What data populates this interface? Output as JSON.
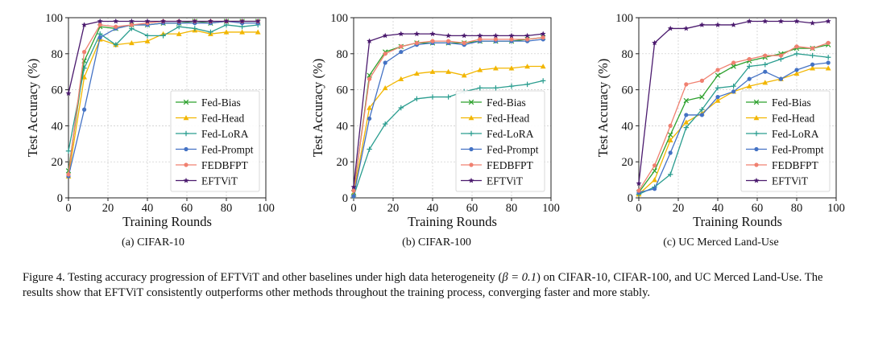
{
  "chart_data": [
    {
      "type": "line",
      "xlabel": "Training Rounds",
      "ylabel": "Test Accuracy (%)",
      "xlim": [
        0,
        100
      ],
      "ylim": [
        0,
        100
      ],
      "xticks": [
        0,
        20,
        40,
        60,
        80,
        100
      ],
      "yticks": [
        0,
        20,
        40,
        60,
        80,
        100
      ],
      "grid": true,
      "legend_position": "lower-right",
      "series": [
        {
          "name": "Fed-Bias",
          "color": "#2ca02c",
          "marker": "x",
          "x": [
            0,
            8,
            16,
            24,
            32,
            40,
            48,
            56,
            64,
            72,
            80,
            88,
            96
          ],
          "y": [
            15,
            76,
            95,
            94,
            96,
            96,
            97,
            97,
            98,
            97,
            98,
            98,
            98
          ]
        },
        {
          "name": "Fed-Head",
          "color": "#f2b600",
          "marker": "triangle",
          "x": [
            0,
            8,
            16,
            24,
            32,
            40,
            48,
            56,
            64,
            72,
            80,
            88,
            96
          ],
          "y": [
            12,
            67,
            88,
            85,
            86,
            87,
            91,
            91,
            93,
            91,
            92,
            92,
            92
          ]
        },
        {
          "name": "Fed-LoRA",
          "color": "#2a9d8f",
          "marker": "plus",
          "x": [
            0,
            8,
            16,
            24,
            32,
            40,
            48,
            56,
            64,
            72,
            80,
            88,
            96
          ],
          "y": [
            26,
            72,
            91,
            85,
            94,
            90,
            90,
            95,
            94,
            92,
            96,
            95,
            96
          ]
        },
        {
          "name": "Fed-Prompt",
          "color": "#4472c4",
          "marker": "circle",
          "x": [
            0,
            8,
            16,
            24,
            32,
            40,
            48,
            56,
            64,
            72,
            80,
            88,
            96
          ],
          "y": [
            12,
            49,
            89,
            94,
            96,
            96,
            97,
            97,
            97,
            97,
            98,
            97,
            97
          ]
        },
        {
          "name": "FEDBFPT",
          "color": "#f08070",
          "marker": "circle",
          "x": [
            0,
            8,
            16,
            24,
            32,
            40,
            48,
            56,
            64,
            72,
            80,
            88,
            96
          ],
          "y": [
            13,
            81,
            96,
            95,
            96,
            97,
            98,
            98,
            98,
            98,
            98,
            98,
            98
          ]
        },
        {
          "name": "EFTViT",
          "color": "#4b1a6e",
          "marker": "star",
          "x": [
            0,
            8,
            16,
            24,
            32,
            40,
            48,
            56,
            64,
            72,
            80,
            88,
            96
          ],
          "y": [
            58,
            96,
            98,
            98,
            98,
            98,
            98,
            98,
            98,
            98,
            98,
            98,
            98
          ]
        }
      ]
    },
    {
      "type": "line",
      "xlabel": "Training Rounds",
      "ylabel": "Test Accuracy (%)",
      "xlim": [
        0,
        100
      ],
      "ylim": [
        0,
        100
      ],
      "xticks": [
        0,
        20,
        40,
        60,
        80,
        100
      ],
      "yticks": [
        0,
        20,
        40,
        60,
        80,
        100
      ],
      "grid": true,
      "legend_position": "lower-right",
      "series": [
        {
          "name": "Fed-Bias",
          "color": "#2ca02c",
          "marker": "x",
          "x": [
            0,
            8,
            16,
            24,
            32,
            40,
            48,
            56,
            64,
            72,
            80,
            88,
            96
          ],
          "y": [
            3,
            68,
            81,
            84,
            86,
            86,
            86,
            86,
            87,
            87,
            87,
            88,
            89
          ]
        },
        {
          "name": "Fed-Head",
          "color": "#f2b600",
          "marker": "triangle",
          "x": [
            0,
            8,
            16,
            24,
            32,
            40,
            48,
            56,
            64,
            72,
            80,
            88,
            96
          ],
          "y": [
            2,
            50,
            61,
            66,
            69,
            70,
            70,
            68,
            71,
            72,
            72,
            73,
            73
          ]
        },
        {
          "name": "Fed-LoRA",
          "color": "#2a9d8f",
          "marker": "plus",
          "x": [
            0,
            8,
            16,
            24,
            32,
            40,
            48,
            56,
            64,
            72,
            80,
            88,
            96
          ],
          "y": [
            1,
            27,
            41,
            50,
            55,
            56,
            56,
            59,
            61,
            61,
            62,
            63,
            65
          ]
        },
        {
          "name": "Fed-Prompt",
          "color": "#4472c4",
          "marker": "circle",
          "x": [
            0,
            8,
            16,
            24,
            32,
            40,
            48,
            56,
            64,
            72,
            80,
            88,
            96
          ],
          "y": [
            1,
            44,
            75,
            81,
            85,
            86,
            86,
            85,
            87,
            87,
            87,
            87,
            88
          ]
        },
        {
          "name": "FEDBFPT",
          "color": "#f08070",
          "marker": "circle",
          "x": [
            0,
            8,
            16,
            24,
            32,
            40,
            48,
            56,
            64,
            72,
            80,
            88,
            96
          ],
          "y": [
            4,
            66,
            80,
            84,
            86,
            87,
            87,
            86,
            88,
            88,
            88,
            88,
            89
          ]
        },
        {
          "name": "EFTViT",
          "color": "#4b1a6e",
          "marker": "star",
          "x": [
            0,
            8,
            16,
            24,
            32,
            40,
            48,
            56,
            64,
            72,
            80,
            88,
            96
          ],
          "y": [
            6,
            87,
            90,
            91,
            91,
            91,
            90,
            90,
            90,
            90,
            90,
            90,
            91
          ]
        }
      ]
    },
    {
      "type": "line",
      "xlabel": "Training Rounds",
      "ylabel": "Test Accuracy (%)",
      "xlim": [
        0,
        100
      ],
      "ylim": [
        0,
        100
      ],
      "xticks": [
        0,
        20,
        40,
        60,
        80,
        100
      ],
      "yticks": [
        0,
        20,
        40,
        60,
        80,
        100
      ],
      "grid": true,
      "legend_position": "lower-right",
      "series": [
        {
          "name": "Fed-Bias",
          "color": "#2ca02c",
          "marker": "x",
          "x": [
            0,
            8,
            16,
            24,
            32,
            40,
            48,
            56,
            64,
            72,
            80,
            88,
            96
          ],
          "y": [
            3,
            15,
            35,
            54,
            56,
            68,
            73,
            76,
            78,
            80,
            83,
            83,
            85
          ]
        },
        {
          "name": "Fed-Head",
          "color": "#f2b600",
          "marker": "triangle",
          "x": [
            0,
            8,
            16,
            24,
            32,
            40,
            48,
            56,
            64,
            72,
            80,
            88,
            96
          ],
          "y": [
            2,
            10,
            32,
            42,
            47,
            54,
            59,
            62,
            64,
            66,
            69,
            72,
            72
          ]
        },
        {
          "name": "Fed-LoRA",
          "color": "#2a9d8f",
          "marker": "plus",
          "x": [
            0,
            8,
            16,
            24,
            32,
            40,
            48,
            56,
            64,
            72,
            80,
            88,
            96
          ],
          "y": [
            2,
            6,
            13,
            39,
            49,
            61,
            62,
            73,
            74,
            77,
            80,
            79,
            78
          ]
        },
        {
          "name": "Fed-Prompt",
          "color": "#4472c4",
          "marker": "circle",
          "x": [
            0,
            8,
            16,
            24,
            32,
            40,
            48,
            56,
            64,
            72,
            80,
            88,
            96
          ],
          "y": [
            3,
            5,
            25,
            46,
            46,
            56,
            59,
            66,
            70,
            66,
            71,
            74,
            75
          ]
        },
        {
          "name": "FEDBFPT",
          "color": "#f08070",
          "marker": "circle",
          "x": [
            0,
            8,
            16,
            24,
            32,
            40,
            48,
            56,
            64,
            72,
            80,
            88,
            96
          ],
          "y": [
            4,
            18,
            40,
            63,
            65,
            71,
            75,
            77,
            79,
            79,
            84,
            83,
            86
          ]
        },
        {
          "name": "EFTViT",
          "color": "#4b1a6e",
          "marker": "star",
          "x": [
            0,
            8,
            16,
            24,
            32,
            40,
            48,
            56,
            64,
            72,
            80,
            88,
            96
          ],
          "y": [
            8,
            86,
            94,
            94,
            96,
            96,
            96,
            98,
            98,
            98,
            98,
            97,
            98
          ]
        }
      ]
    }
  ],
  "subcaptions": [
    "(a) CIFAR-10",
    "(b) CIFAR-100",
    "(c) UC Merced Land-Use"
  ],
  "caption": {
    "text_before": "Figure 4.  Testing accuracy progression of EFTViT and other baselines under high data heterogeneity (",
    "math": "β = 0.1",
    "text_after": ") on CIFAR-10, CIFAR-100, and UC Merced Land-Use.  The results show that EFTViT consistently outperforms other methods throughout the training process, converging faster and more stably."
  }
}
